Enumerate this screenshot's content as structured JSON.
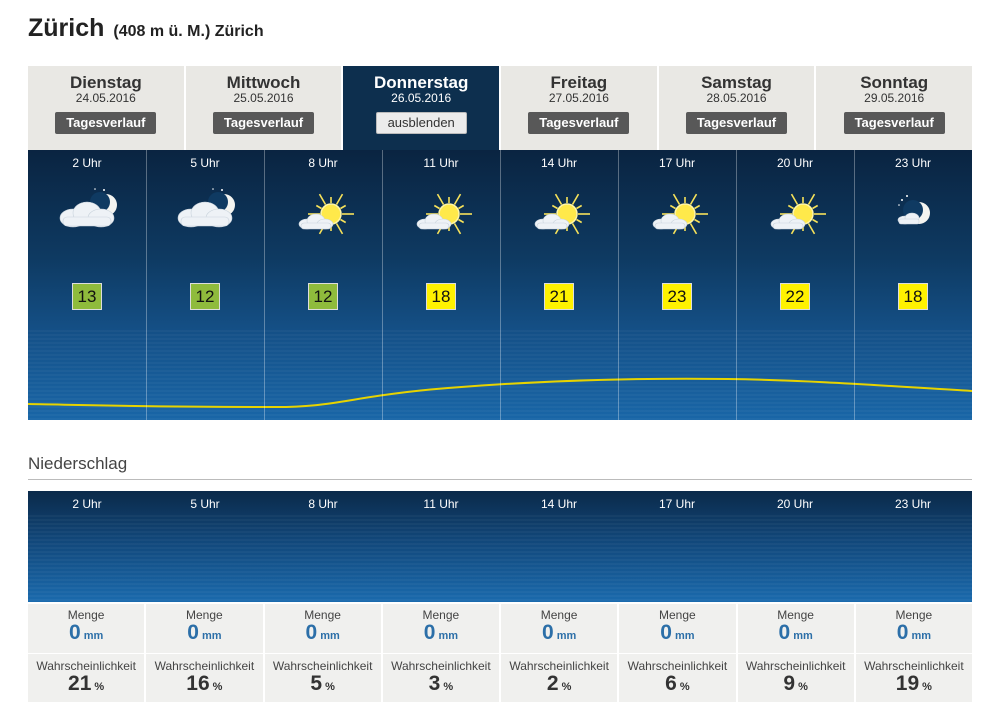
{
  "header": {
    "city": "Zürich",
    "subtitle": "(408 m ü. M.) Zürich"
  },
  "days": [
    {
      "name": "Dienstag",
      "date": "24.05.2016",
      "button": "Tagesverlauf",
      "active": false
    },
    {
      "name": "Mittwoch",
      "date": "25.05.2016",
      "button": "Tagesverlauf",
      "active": false
    },
    {
      "name": "Donnerstag",
      "date": "26.05.2016",
      "button": "ausblenden",
      "active": true
    },
    {
      "name": "Freitag",
      "date": "27.05.2016",
      "button": "Tagesverlauf",
      "active": false
    },
    {
      "name": "Samstag",
      "date": "28.05.2016",
      "button": "Tagesverlauf",
      "active": false
    },
    {
      "name": "Sonntag",
      "date": "29.05.2016",
      "button": "Tagesverlauf",
      "active": false
    }
  ],
  "hours": [
    {
      "label": "2 Uhr",
      "icon": "night-cloud-moon-icon",
      "temp": "13",
      "temp_color": "#8fbb3c",
      "menge": "0",
      "prob": "21"
    },
    {
      "label": "5 Uhr",
      "icon": "night-cloud-moon-icon",
      "temp": "12",
      "temp_color": "#8fbb3c",
      "menge": "0",
      "prob": "16"
    },
    {
      "label": "8 Uhr",
      "icon": "sun-cloud-icon",
      "temp": "12",
      "temp_color": "#8fbb3c",
      "menge": "0",
      "prob": "5"
    },
    {
      "label": "11 Uhr",
      "icon": "sun-cloud-icon",
      "temp": "18",
      "temp_color": "#fff200",
      "menge": "0",
      "prob": "3"
    },
    {
      "label": "14 Uhr",
      "icon": "sun-cloud-icon",
      "temp": "21",
      "temp_color": "#fff200",
      "menge": "0",
      "prob": "2"
    },
    {
      "label": "17 Uhr",
      "icon": "sun-cloud-icon",
      "temp": "23",
      "temp_color": "#fff200",
      "menge": "0",
      "prob": "6"
    },
    {
      "label": "20 Uhr",
      "icon": "sun-cloud-icon",
      "temp": "22",
      "temp_color": "#fff200",
      "menge": "0",
      "prob": "9"
    },
    {
      "label": "23 Uhr",
      "icon": "moon-cloud-icon",
      "temp": "18",
      "temp_color": "#fff200",
      "menge": "0",
      "prob": "19"
    }
  ],
  "precip": {
    "section_title": "Niederschlag",
    "menge_label": "Menge",
    "menge_unit": "mm",
    "prob_label": "Wahrscheinlichkeit",
    "prob_unit": "%"
  },
  "colors": {
    "active_tab": "#0d2f4e",
    "temp_line": "#e6d300",
    "precip_value": "#2c6fa8"
  }
}
